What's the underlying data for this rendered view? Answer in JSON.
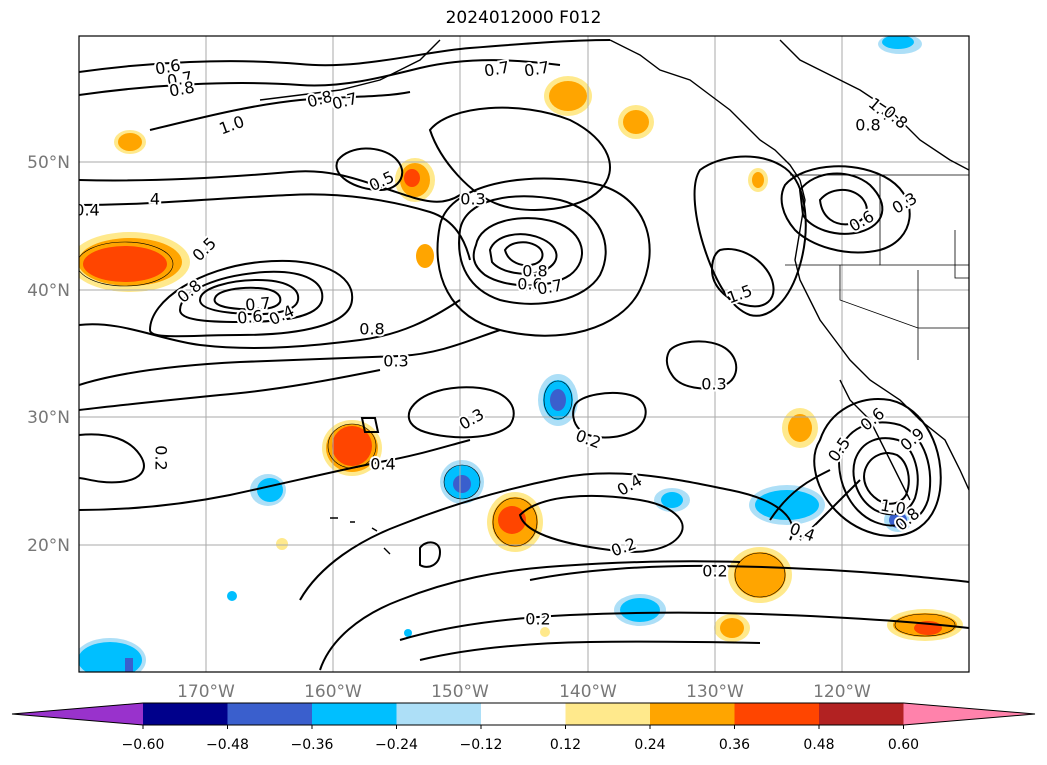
{
  "title": "2024012000 F012",
  "lat_labels": [
    "50°N",
    "40°N",
    "30°N",
    "20°N"
  ],
  "lon_labels": [
    "170°W",
    "160°W",
    "150°W",
    "140°W",
    "130°W",
    "120°W"
  ],
  "colorbar": {
    "ticks": [
      "−0.60",
      "−0.48",
      "−0.36",
      "−0.24",
      "−0.12",
      "0.12",
      "0.24",
      "0.36",
      "0.48",
      "0.60"
    ],
    "colors": [
      "#9932CC",
      "#00008B",
      "#3A5FCD",
      "#00BFFF",
      "#ADDFF7",
      "#FFFFFF",
      "#FFE98C",
      "#FFA500",
      "#FF4500",
      "#B22222",
      "#FF82AB"
    ]
  },
  "contour_labels": [
    "0.6",
    "0.7",
    "0.8",
    "1.0",
    "0.8",
    "0.7",
    "0.7",
    "0.7",
    "0.5",
    "4",
    "0.4",
    "0.3",
    "0.5",
    "0.8",
    "0.7",
    "0.6",
    "0.4",
    "0.8",
    "0.8",
    "0.6",
    "0.7",
    "1.5",
    "1.4",
    "0.8",
    "0.8",
    "0.6",
    "0.3",
    "0.3",
    "0.3",
    "0.3",
    "0.2",
    "0.2",
    "0.4",
    "0.4",
    "0.2",
    "0.4",
    "0.6",
    "0.9",
    "0.5",
    "1.0",
    "0.8",
    "0.2",
    "0.2"
  ]
}
